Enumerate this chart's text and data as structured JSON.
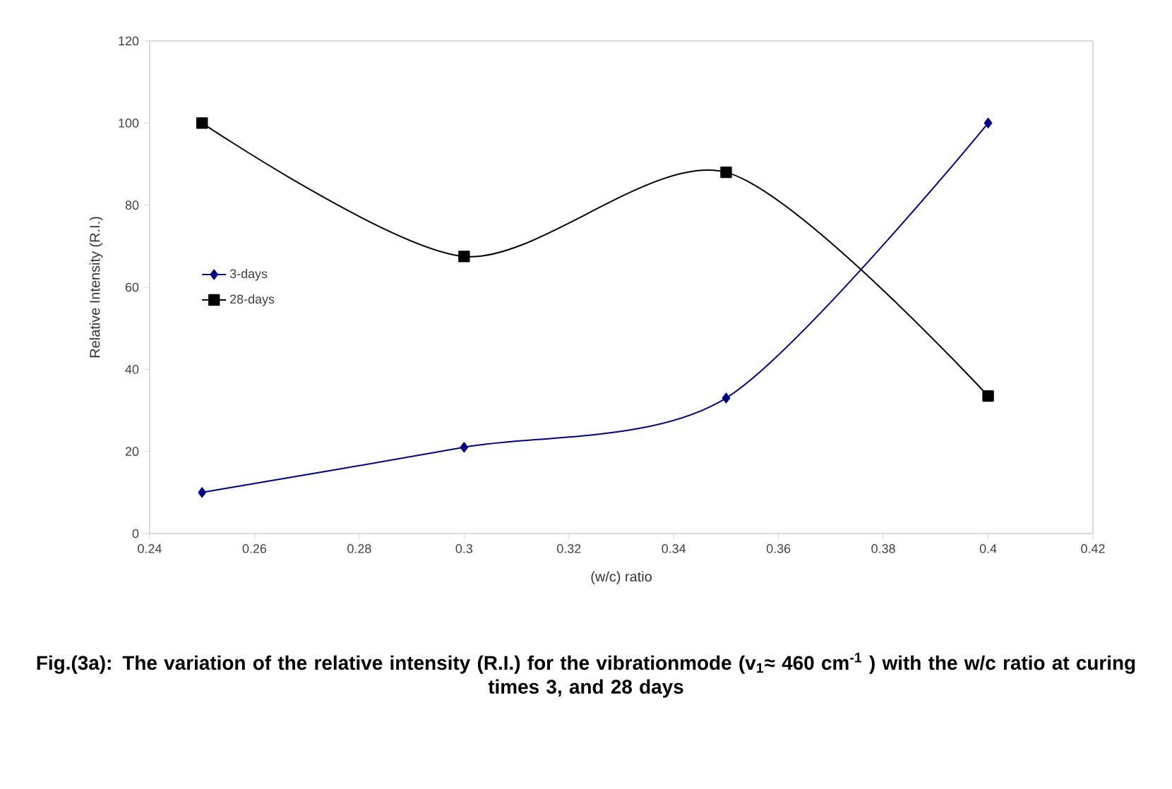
{
  "chart_data": {
    "type": "line",
    "xlabel": "(w/c) ratio",
    "ylabel": "Relative Intensity (R.I.)",
    "x": [
      0.25,
      0.3,
      0.35,
      0.4
    ],
    "series": [
      {
        "name": "3-days",
        "color": "#000080",
        "values": [
          10,
          21,
          33,
          100
        ],
        "marker": "diamond"
      },
      {
        "name": "28-days",
        "color": "#000000",
        "values": [
          100,
          67.5,
          88,
          33.5
        ],
        "marker": "square"
      }
    ],
    "xlim": [
      0.24,
      0.42
    ],
    "xticks": [
      0.24,
      0.26,
      0.28,
      0.3,
      0.32,
      0.34,
      0.36,
      0.38,
      0.4,
      0.42
    ],
    "ylim": [
      0,
      120
    ],
    "yticks": [
      0,
      20,
      40,
      60,
      80,
      100,
      120
    ],
    "legend": "left",
    "line_style": "solid",
    "grid": false,
    "annotations": [
      "**Fig.(3a): The variation of the relative intensity (R.I.) for the vibrationmode (v$_{1}$≈ 460 cm$^{-1}$ ) with the w/c ratio at curing times 3, and 28 days**"
    ]
  }
}
